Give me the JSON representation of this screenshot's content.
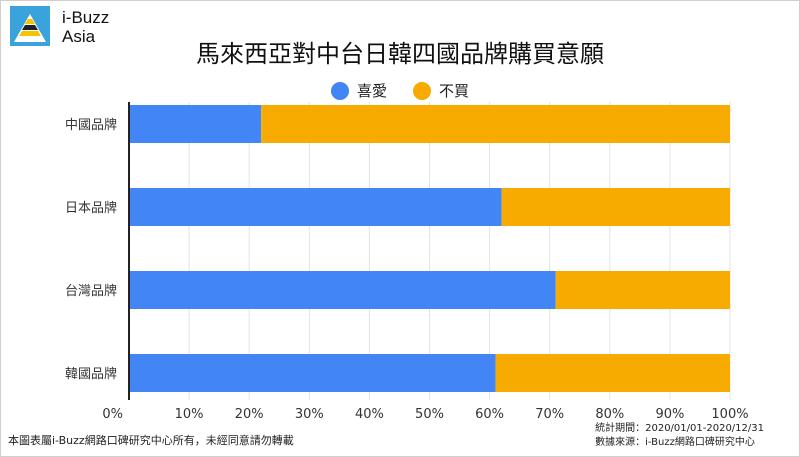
{
  "brand": {
    "line1": "i-Buzz",
    "line2": "Asia"
  },
  "title": "馬來西亞對中台日韓四國品牌購買意願",
  "legend": [
    {
      "label": "喜愛",
      "color": "#4285f4"
    },
    {
      "label": "不買",
      "color": "#f7ab00"
    }
  ],
  "footer": {
    "copyright": "本圖表屬i-Buzz網路口碑研究中心所有，未經同意請勿轉載",
    "period": "統計期間：2020/01/01-2020/12/31",
    "source": "數據來源：i-Buzz網路口碑研究中心"
  },
  "chart_data": {
    "type": "bar",
    "orientation": "horizontal",
    "stacked": true,
    "stack_mode": "percent",
    "categories": [
      "中國品牌",
      "日本品牌",
      "台灣品牌",
      "韓國品牌"
    ],
    "series": [
      {
        "name": "喜愛",
        "color": "#4285f4",
        "values": [
          22,
          62,
          71,
          61
        ]
      },
      {
        "name": "不買",
        "color": "#f7ab00",
        "values": [
          78,
          38,
          29,
          39
        ]
      }
    ],
    "x_ticks": [
      "0%",
      "10%",
      "20%",
      "30%",
      "40%",
      "50%",
      "60%",
      "70%",
      "80%",
      "90%",
      "100%"
    ],
    "xlim": [
      0,
      100
    ],
    "grid": true,
    "legend_position": "top"
  }
}
